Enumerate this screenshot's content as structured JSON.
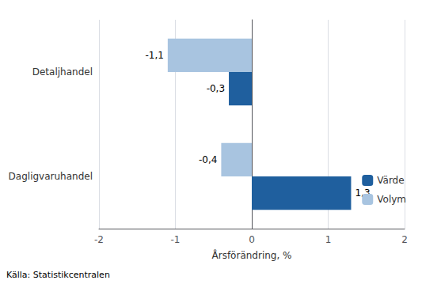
{
  "chart_data": {
    "type": "bar",
    "orientation": "horizontal",
    "categories": [
      "Dagligvaruhandel",
      "Detaljhandel"
    ],
    "series": [
      {
        "name": "Värde",
        "color": "#1F5F9E",
        "values": [
          1.3,
          -0.3
        ],
        "value_labels": [
          "1,3",
          "-0,3"
        ]
      },
      {
        "name": "Volym",
        "color": "#A8C4E0",
        "values": [
          -0.4,
          -1.1
        ],
        "value_labels": [
          "-0,4",
          "-1,1"
        ]
      }
    ],
    "xlabel": "Årsförändring, %",
    "xlim": [
      -2,
      2
    ],
    "xticks": [
      -2,
      -1,
      0,
      1,
      2
    ],
    "grid": true,
    "data_labels": true,
    "legend": "lower right",
    "annotations": [
      "Källa: Statistikcentralen"
    ]
  }
}
